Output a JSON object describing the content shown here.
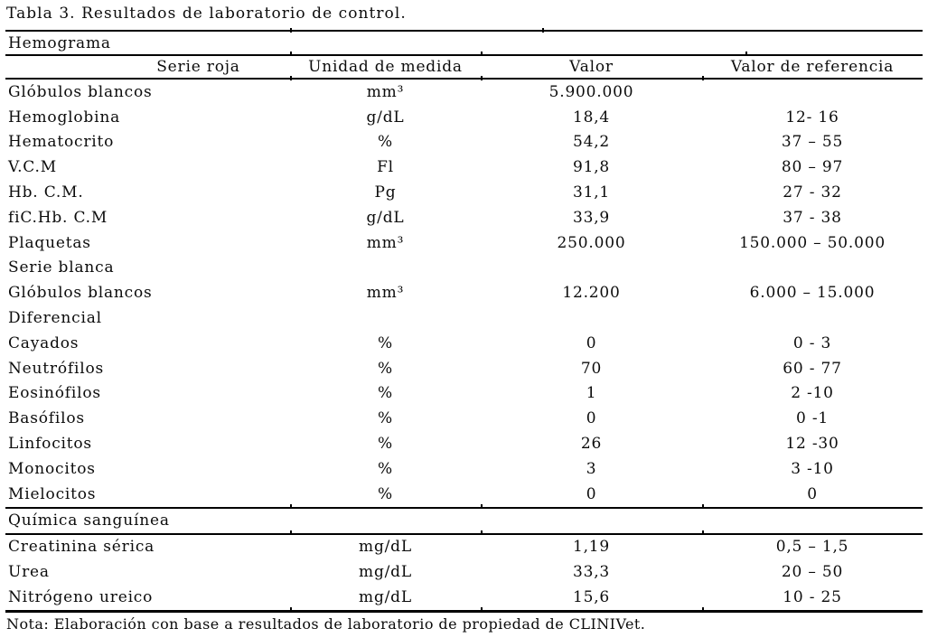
{
  "title": "Tabla 3. Resultados de laboratorio de control.",
  "table": {
    "section_hemograma": "Hemograma",
    "columns": [
      "Serie roja",
      "Unidad de medida",
      "Valor",
      "Valor de referencia"
    ],
    "rows_hemograma": [
      {
        "type": "data",
        "label": "Glóbulos blancos",
        "unit": "mm³",
        "value": "5.900.000",
        "ref": ""
      },
      {
        "type": "data",
        "label": "Hemoglobina",
        "unit": "g/dL",
        "value": "18,4",
        "ref": "12- 16"
      },
      {
        "type": "data",
        "label": "Hematocrito",
        "unit": "%",
        "value": "54,2",
        "ref": "37 – 55"
      },
      {
        "type": "data",
        "label": "V.C.M",
        "unit": "Fl",
        "value": "91,8",
        "ref": "80 – 97"
      },
      {
        "type": "data",
        "label": "Hb. C.M.",
        "unit": "Pg",
        "value": "31,1",
        "ref": "27 - 32"
      },
      {
        "type": "data",
        "label": "fiC.Hb. C.M",
        "unit": "g/dL",
        "value": "33,9",
        "ref": "37 - 38"
      },
      {
        "type": "data",
        "label": "Plaquetas",
        "unit": "mm³",
        "value": "250.000",
        "ref": "150.000 – 50.000"
      },
      {
        "type": "section",
        "label": "Serie blanca"
      },
      {
        "type": "data",
        "label": "Glóbulos blancos",
        "unit": "mm³",
        "value": "12.200",
        "ref": "6.000 – 15.000"
      },
      {
        "type": "section",
        "label": "Diferencial"
      },
      {
        "type": "data",
        "label": "Cayados",
        "unit": "%",
        "value": "0",
        "ref": "0 - 3"
      },
      {
        "type": "data",
        "label": "Neutrófilos",
        "unit": "%",
        "value": "70",
        "ref": "60 - 77"
      },
      {
        "type": "data",
        "label": "Eosinófilos",
        "unit": "%",
        "value": "1",
        "ref": "2 -10"
      },
      {
        "type": "data",
        "label": "Basófilos",
        "unit": "%",
        "value": "0",
        "ref": "0 -1"
      },
      {
        "type": "data",
        "label": "Linfocitos",
        "unit": "%",
        "value": "26",
        "ref": "12 -30"
      },
      {
        "type": "data",
        "label": "Monocitos",
        "unit": "%",
        "value": "3",
        "ref": "3 -10"
      },
      {
        "type": "data",
        "label": "Mielocitos",
        "unit": "%",
        "value": "0",
        "ref": "0"
      }
    ],
    "section_quimica": "Química sanguínea",
    "rows_quimica": [
      {
        "type": "data",
        "label": "Creatinina sérica",
        "unit": "mg/dL",
        "value": "1,19",
        "ref": "0,5 – 1,5"
      },
      {
        "type": "data",
        "label": "Urea",
        "unit": "mg/dL",
        "value": "33,3",
        "ref": "20 – 50"
      },
      {
        "type": "data",
        "label": "Nitrógeno ureico",
        "unit": "mg/dL",
        "value": "15,6",
        "ref": "10 - 25"
      }
    ]
  },
  "note": "Nota: Elaboración con base a resultados de laboratorio de propiedad de CLINIVet."
}
